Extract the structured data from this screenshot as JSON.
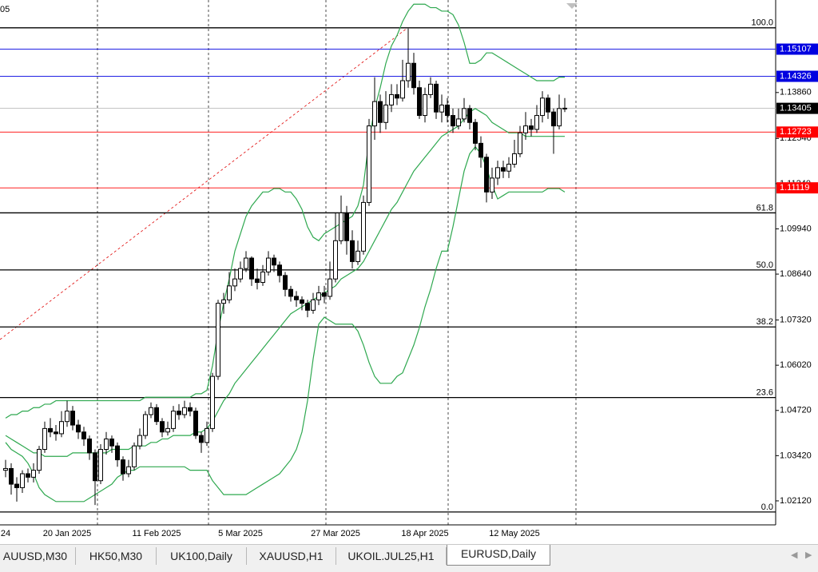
{
  "chart_data": {
    "type": "candlestick",
    "corner_text": "05",
    "categories": [
      "24",
      null,
      null,
      null,
      null,
      null,
      null,
      null,
      null,
      null,
      null,
      "20 Jan 2025",
      null,
      null,
      null,
      null,
      null,
      null,
      null,
      null,
      null,
      null,
      null,
      null,
      null,
      null,
      null,
      "11 Feb 2025",
      null,
      null,
      null,
      null,
      null,
      null,
      null,
      null,
      null,
      null,
      null,
      null,
      null,
      null,
      "5 Mar 2025",
      null,
      null,
      null,
      null,
      null,
      null,
      null,
      null,
      null,
      null,
      null,
      null,
      null,
      null,
      null,
      null,
      "27 Mar 2025",
      null,
      null,
      null,
      null,
      null,
      null,
      null,
      null,
      null,
      null,
      null,
      null,
      null,
      null,
      null,
      "18 Apr 2025",
      null,
      null,
      null,
      null,
      null,
      null,
      null,
      null,
      null,
      null,
      null,
      null,
      null,
      null,
      null,
      "12 May 2025",
      null,
      null,
      null,
      null,
      null,
      null,
      null,
      null,
      null
    ],
    "open": [
      1.03,
      1.0305,
      1.026,
      1.025,
      1.029,
      1.028,
      1.03,
      1.036,
      1.042,
      1.041,
      1.0405,
      1.044,
      1.047,
      1.043,
      1.041,
      1.039,
      1.035,
      1.027,
      1.036,
      1.039,
      1.037,
      1.033,
      1.029,
      1.031,
      1.037,
      1.04,
      1.046,
      1.048,
      1.044,
      1.041,
      1.042,
      1.047,
      1.046,
      1.048,
      1.047,
      1.04,
      1.038,
      1.042,
      1.057,
      1.078,
      1.079,
      1.083,
      1.085,
      1.088,
      1.091,
      1.085,
      1.084,
      1.087,
      1.091,
      1.089,
      1.086,
      1.082,
      1.08,
      1.079,
      1.078,
      1.076,
      1.079,
      1.081,
      1.08,
      1.085,
      1.096,
      1.104,
      1.096,
      1.09,
      1.093,
      1.107,
      1.129,
      1.136,
      1.13,
      1.135,
      1.138,
      1.137,
      1.142,
      1.147,
      1.14,
      1.132,
      1.138,
      1.141,
      1.133,
      1.135,
      1.132,
      1.129,
      1.131,
      1.134,
      1.13,
      1.124,
      1.12,
      1.11,
      1.114,
      1.117,
      1.116,
      1.118,
      1.121,
      1.127,
      1.129,
      1.128,
      1.132,
      1.137,
      1.133,
      1.129,
      1.134
    ],
    "high": [
      1.033,
      1.032,
      1.028,
      1.03,
      1.0305,
      1.032,
      1.037,
      1.044,
      1.045,
      1.043,
      1.047,
      1.05,
      1.0485,
      1.0445,
      1.0425,
      1.04,
      1.036,
      1.0375,
      1.041,
      1.04,
      1.038,
      1.034,
      1.033,
      1.038,
      1.042,
      1.047,
      1.0495,
      1.049,
      1.045,
      1.044,
      1.0485,
      1.049,
      1.05,
      1.0495,
      1.048,
      1.041,
      1.044,
      1.058,
      1.079,
      1.081,
      1.087,
      1.088,
      1.09,
      1.093,
      1.0915,
      1.088,
      1.089,
      1.093,
      1.092,
      1.09,
      1.087,
      1.083,
      1.0815,
      1.08,
      1.079,
      1.081,
      1.083,
      1.083,
      1.09,
      1.104,
      1.109,
      1.106,
      1.099,
      1.096,
      1.109,
      1.131,
      1.143,
      1.138,
      1.139,
      1.141,
      1.141,
      1.148,
      1.157,
      1.15,
      1.142,
      1.14,
      1.143,
      1.142,
      1.138,
      1.137,
      1.134,
      1.134,
      1.137,
      1.135,
      1.131,
      1.126,
      1.121,
      1.117,
      1.119,
      1.119,
      1.12,
      1.125,
      1.129,
      1.133,
      1.131,
      1.135,
      1.139,
      1.138,
      1.134,
      1.138,
      1.137
    ],
    "low": [
      1.028,
      1.023,
      1.021,
      1.0235,
      1.0265,
      1.0265,
      1.029,
      1.035,
      1.0395,
      1.0385,
      1.0395,
      1.0425,
      1.0415,
      1.039,
      1.037,
      1.033,
      1.02,
      1.026,
      1.0345,
      1.035,
      1.031,
      1.027,
      1.028,
      1.03,
      1.036,
      1.039,
      1.045,
      1.043,
      1.0395,
      1.04,
      1.041,
      1.0445,
      1.045,
      1.0455,
      1.039,
      1.035,
      1.037,
      1.041,
      1.056,
      1.075,
      1.078,
      1.0815,
      1.084,
      1.087,
      1.083,
      1.082,
      1.083,
      1.086,
      1.087,
      1.084,
      1.08,
      1.0785,
      1.077,
      1.076,
      1.074,
      1.075,
      1.0775,
      1.078,
      1.079,
      1.084,
      1.095,
      1.092,
      1.088,
      1.089,
      1.092,
      1.106,
      1.125,
      1.127,
      1.128,
      1.133,
      1.135,
      1.136,
      1.14,
      1.138,
      1.131,
      1.13,
      1.137,
      1.131,
      1.13,
      1.13,
      1.127,
      1.128,
      1.13,
      1.128,
      1.122,
      1.117,
      1.107,
      1.108,
      1.112,
      1.114,
      1.114,
      1.117,
      1.12,
      1.125,
      1.126,
      1.127,
      1.13,
      1.131,
      1.121,
      1.128,
      1.133
    ],
    "close": [
      1.0305,
      1.026,
      1.025,
      1.029,
      1.028,
      1.03,
      1.036,
      1.042,
      1.041,
      1.0405,
      1.044,
      1.047,
      1.043,
      1.041,
      1.039,
      1.035,
      1.027,
      1.036,
      1.039,
      1.037,
      1.033,
      1.029,
      1.031,
      1.037,
      1.04,
      1.046,
      1.048,
      1.044,
      1.041,
      1.042,
      1.047,
      1.046,
      1.048,
      1.047,
      1.04,
      1.038,
      1.042,
      1.057,
      1.078,
      1.079,
      1.083,
      1.085,
      1.088,
      1.091,
      1.085,
      1.084,
      1.087,
      1.091,
      1.089,
      1.086,
      1.082,
      1.08,
      1.079,
      1.078,
      1.076,
      1.079,
      1.081,
      1.08,
      1.085,
      1.096,
      1.104,
      1.096,
      1.09,
      1.093,
      1.107,
      1.129,
      1.136,
      1.13,
      1.135,
      1.138,
      1.137,
      1.142,
      1.147,
      1.14,
      1.132,
      1.138,
      1.141,
      1.133,
      1.135,
      1.132,
      1.129,
      1.131,
      1.134,
      1.13,
      1.124,
      1.12,
      1.11,
      1.114,
      1.117,
      1.116,
      1.118,
      1.121,
      1.127,
      1.129,
      1.128,
      1.132,
      1.137,
      1.133,
      1.129,
      1.134,
      1.1341
    ],
    "up_color": "#ffffff",
    "down_color": "#000000",
    "bands": [
      {
        "color": "#2ea84f",
        "values": [
          1.04,
          1.039,
          1.038,
          1.037,
          1.036,
          1.035,
          1.035,
          1.034,
          1.034,
          1.034,
          1.034,
          1.034,
          1.035,
          1.035,
          1.035,
          1.035,
          1.035,
          1.035,
          1.035,
          1.036,
          1.036,
          1.036,
          1.036,
          1.037,
          1.037,
          1.037,
          1.038,
          1.038,
          1.039,
          1.039,
          1.04,
          1.04,
          1.04,
          1.04,
          1.041,
          1.041,
          1.042,
          1.044,
          1.047,
          1.05,
          1.052,
          1.055,
          1.057,
          1.059,
          1.061,
          1.063,
          1.065,
          1.067,
          1.069,
          1.071,
          1.073,
          1.075,
          1.076,
          1.077,
          1.078,
          1.079,
          1.08,
          1.081,
          1.082,
          1.083,
          1.085,
          1.086,
          1.087,
          1.088,
          1.09,
          1.093,
          1.096,
          1.099,
          1.102,
          1.105,
          1.107,
          1.11,
          1.113,
          1.116,
          1.118,
          1.12,
          1.122,
          1.124,
          1.126,
          1.127,
          1.128,
          1.129,
          1.131,
          1.133,
          1.134,
          1.133,
          1.132,
          1.13,
          1.129,
          1.128,
          1.127,
          1.127,
          1.127,
          1.126,
          1.126,
          1.126,
          1.126,
          1.126,
          1.126,
          1.126,
          1.126
        ]
      },
      {
        "color": "#2ea84f",
        "values": [
          1.045,
          1.046,
          1.046,
          1.047,
          1.047,
          1.048,
          1.048,
          1.049,
          1.049,
          1.05,
          1.05,
          1.05,
          1.05,
          1.05,
          1.05,
          1.05,
          1.05,
          1.05,
          1.05,
          1.05,
          1.05,
          1.05,
          1.05,
          1.05,
          1.05,
          1.051,
          1.051,
          1.051,
          1.051,
          1.051,
          1.051,
          1.051,
          1.051,
          1.051,
          1.052,
          1.052,
          1.053,
          1.06,
          1.07,
          1.078,
          1.085,
          1.093,
          1.098,
          1.103,
          1.106,
          1.108,
          1.11,
          1.11,
          1.111,
          1.111,
          1.11,
          1.11,
          1.108,
          1.105,
          1.1,
          1.097,
          1.096,
          1.098,
          1.099,
          1.1,
          1.101,
          1.102,
          1.103,
          1.106,
          1.112,
          1.125,
          1.134,
          1.14,
          1.147,
          1.152,
          1.155,
          1.159,
          1.162,
          1.164,
          1.164,
          1.164,
          1.163,
          1.163,
          1.162,
          1.162,
          1.161,
          1.158,
          1.153,
          1.147,
          1.147,
          1.148,
          1.15,
          1.15,
          1.149,
          1.148,
          1.147,
          1.146,
          1.145,
          1.144,
          1.143,
          1.142,
          1.142,
          1.142,
          1.142,
          1.143,
          1.143
        ]
      },
      {
        "color": "#2ea84f",
        "values": [
          1.038,
          1.036,
          1.035,
          1.034,
          1.032,
          1.029,
          1.025,
          1.023,
          1.022,
          1.021,
          1.021,
          1.021,
          1.021,
          1.021,
          1.021,
          1.022,
          1.023,
          1.024,
          1.025,
          1.026,
          1.028,
          1.029,
          1.03,
          1.03,
          1.031,
          1.031,
          1.031,
          1.031,
          1.031,
          1.031,
          1.031,
          1.031,
          1.031,
          1.03,
          1.03,
          1.03,
          1.03,
          1.027,
          1.025,
          1.023,
          1.023,
          1.023,
          1.023,
          1.023,
          1.024,
          1.025,
          1.026,
          1.027,
          1.028,
          1.029,
          1.031,
          1.033,
          1.036,
          1.041,
          1.05,
          1.062,
          1.072,
          1.074,
          1.073,
          1.072,
          1.072,
          1.072,
          1.072,
          1.07,
          1.066,
          1.061,
          1.057,
          1.055,
          1.055,
          1.055,
          1.057,
          1.058,
          1.062,
          1.066,
          1.071,
          1.077,
          1.082,
          1.088,
          1.093,
          1.093,
          1.1,
          1.108,
          1.116,
          1.121,
          1.123,
          1.121,
          1.117,
          1.112,
          1.108,
          1.109,
          1.11,
          1.11,
          1.11,
          1.11,
          1.11,
          1.11,
          1.11,
          1.111,
          1.111,
          1.111,
          1.11
        ]
      }
    ],
    "ylim": [
      1.0143,
      1.1652
    ],
    "yticks": [
      {
        "value": 1.1386,
        "label": "1.13860"
      },
      {
        "value": 1.1254,
        "label": "1.12540"
      },
      {
        "value": 1.1124,
        "label": "1.11240"
      },
      {
        "value": 1.0994,
        "label": "1.09940"
      },
      {
        "value": 1.0864,
        "label": "1.08640"
      },
      {
        "value": 1.0732,
        "label": "1.07320"
      },
      {
        "value": 1.0602,
        "label": "1.06020"
      },
      {
        "value": 1.0472,
        "label": "1.04720"
      },
      {
        "value": 1.0342,
        "label": "1.03420"
      },
      {
        "value": 1.0212,
        "label": "1.02120"
      }
    ],
    "fib_levels": [
      {
        "label": "100.0",
        "value": 1.1572
      },
      {
        "label": "61.8",
        "value": 1.104
      },
      {
        "label": "50.0",
        "value": 1.0876
      },
      {
        "label": "38.2",
        "value": 1.0712
      },
      {
        "label": "23.6",
        "value": 1.0509
      },
      {
        "label": "0.0",
        "value": 1.018
      }
    ],
    "price_lines": [
      {
        "value": 1.15107,
        "color": "#0000e0"
      },
      {
        "value": 1.14326,
        "color": "#0000e0"
      },
      {
        "value": 1.12723,
        "color": "#ff0000"
      },
      {
        "value": 1.11119,
        "color": "#ff0000"
      }
    ],
    "current_price": 1.13405
  },
  "tabs": [
    "AUUSD,M30",
    "HK50,M30",
    "UK100,Daily",
    "XAUUSD,H1",
    "UKOIL.JUL25,H1",
    "EURUSD,Daily"
  ],
  "active_tab": 5
}
